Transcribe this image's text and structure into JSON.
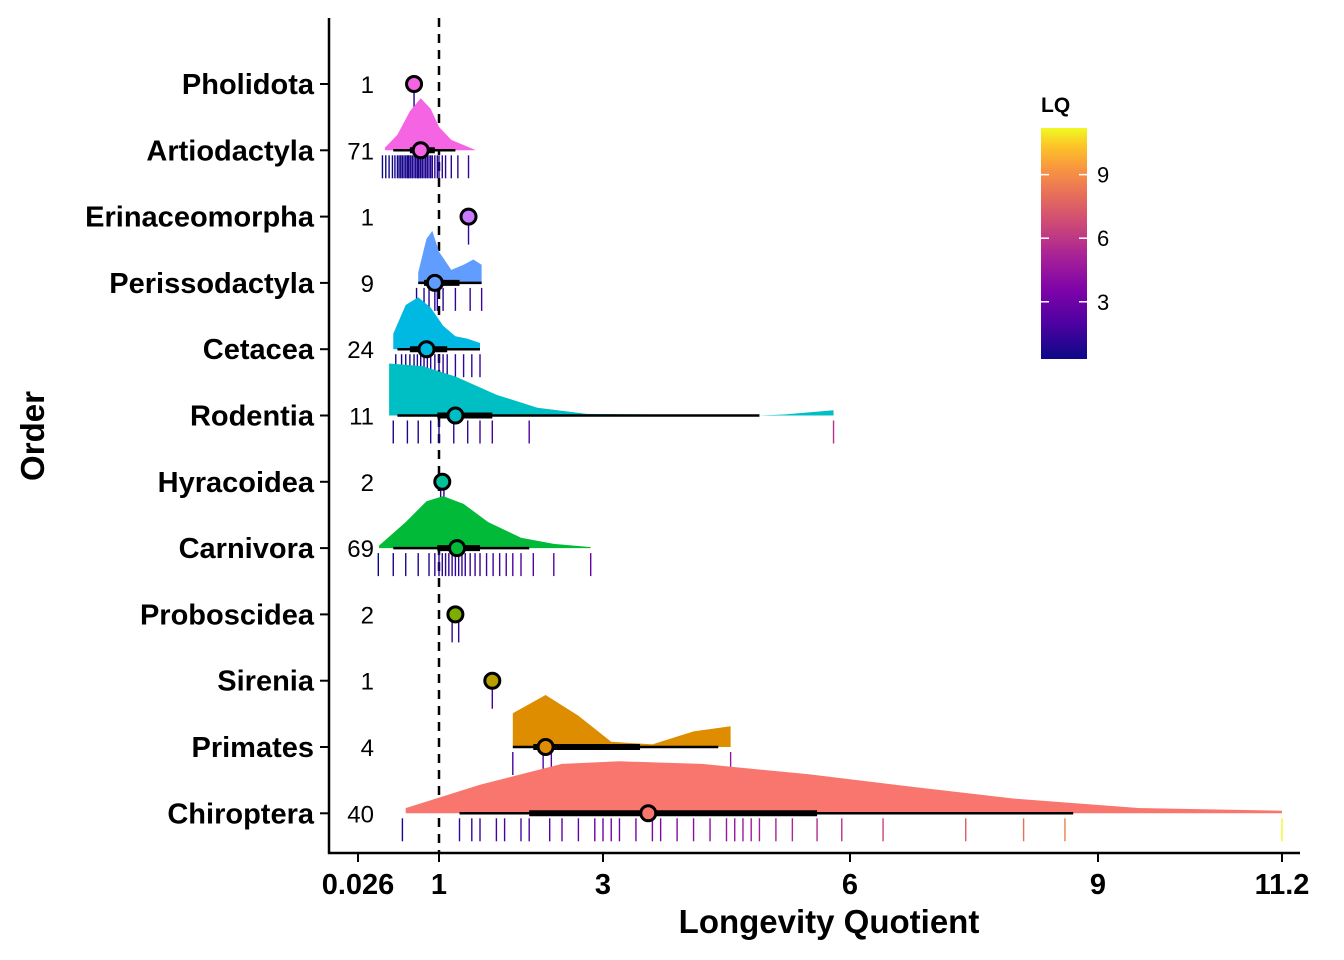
{
  "chart_data": {
    "type": "raincloud",
    "xlabel": "Longevity Quotient",
    "ylabel": "Order",
    "x_ticks": [
      0.026,
      1,
      3,
      6,
      9,
      11.2
    ],
    "x_tick_labels": [
      "0.026",
      "1",
      "3",
      "6",
      "9",
      "11.2"
    ],
    "xlim": [
      -0.4,
      11.2
    ],
    "reference_line": 1,
    "legend": {
      "title": "LQ",
      "ticks": [
        3,
        6,
        9
      ],
      "tick_labels": [
        "3",
        "6",
        "9"
      ],
      "range": [
        0.3,
        11.2
      ],
      "placement": "top-right"
    },
    "categories": [
      "Pholidota",
      "Artiodactyla",
      "Erinaceomorpha",
      "Perissodactyla",
      "Cetacea",
      "Rodentia",
      "Hyracoidea",
      "Carnivora",
      "Proboscidea",
      "Sirenia",
      "Primates",
      "Chiroptera"
    ],
    "series": [
      {
        "order": "Pholidota",
        "n": 1,
        "n_label": "1",
        "mean": 0.7,
        "q_low": null,
        "q_high": null,
        "whisker": null,
        "points": [
          0.7
        ],
        "density": [],
        "color": "#F564E3"
      },
      {
        "order": "Artiodactyla",
        "n": 71,
        "n_label": "71",
        "mean": 0.78,
        "q_low": 0.65,
        "q_high": 0.95,
        "whisker": [
          0.45,
          1.2
        ],
        "points": [
          0.32,
          0.36,
          0.4,
          0.44,
          0.47,
          0.5,
          0.52,
          0.54,
          0.56,
          0.58,
          0.6,
          0.62,
          0.63,
          0.64,
          0.66,
          0.68,
          0.7,
          0.72,
          0.74,
          0.75,
          0.76,
          0.78,
          0.8,
          0.82,
          0.84,
          0.86,
          0.88,
          0.9,
          0.92,
          0.95,
          0.98,
          1.0,
          1.04,
          1.08,
          1.15,
          1.23,
          1.36
        ],
        "density": [
          [
            0.35,
            0.05
          ],
          [
            0.5,
            0.3
          ],
          [
            0.65,
            0.75
          ],
          [
            0.78,
            1.0
          ],
          [
            0.9,
            0.8
          ],
          [
            1.0,
            0.45
          ],
          [
            1.15,
            0.2
          ],
          [
            1.35,
            0.07
          ],
          [
            1.45,
            0
          ]
        ],
        "color": "#F564E3"
      },
      {
        "order": "Erinaceomorpha",
        "n": 1,
        "n_label": "1",
        "mean": 1.36,
        "q_low": null,
        "q_high": null,
        "whisker": null,
        "points": [
          1.36
        ],
        "density": [],
        "color": "#C77CFF"
      },
      {
        "order": "Perissodactyla",
        "n": 9,
        "n_label": "9",
        "mean": 0.95,
        "q_low": 0.82,
        "q_high": 1.25,
        "whisker": [
          0.75,
          1.52
        ],
        "points": [
          0.73,
          0.82,
          0.88,
          0.95,
          0.98,
          1.05,
          1.2,
          1.38,
          1.52
        ],
        "density": [
          [
            0.75,
            0.2
          ],
          [
            0.85,
            0.85
          ],
          [
            0.92,
            1.0
          ],
          [
            1.0,
            0.6
          ],
          [
            1.15,
            0.25
          ],
          [
            1.3,
            0.35
          ],
          [
            1.42,
            0.45
          ],
          [
            1.52,
            0.35
          ]
        ],
        "color": "#619CFF"
      },
      {
        "order": "Cetacea",
        "n": 24,
        "n_label": "24",
        "mean": 0.85,
        "q_low": 0.65,
        "q_high": 1.1,
        "whisker": [
          0.5,
          1.5
        ],
        "points": [
          0.48,
          0.55,
          0.6,
          0.65,
          0.7,
          0.74,
          0.78,
          0.82,
          0.86,
          0.9,
          0.95,
          1.0,
          1.05,
          1.1,
          1.2,
          1.3,
          1.4,
          1.5
        ],
        "density": [
          [
            0.45,
            0.3
          ],
          [
            0.6,
            0.85
          ],
          [
            0.75,
            1.0
          ],
          [
            0.9,
            0.8
          ],
          [
            1.05,
            0.45
          ],
          [
            1.2,
            0.25
          ],
          [
            1.35,
            0.2
          ],
          [
            1.5,
            0.12
          ]
        ],
        "color": "#00B9E3"
      },
      {
        "order": "Rodentia",
        "n": 11,
        "n_label": "11",
        "mean": 1.2,
        "q_low": 0.98,
        "q_high": 1.65,
        "whisker": [
          0.5,
          4.9
        ],
        "points": [
          0.45,
          0.62,
          0.75,
          0.9,
          1.0,
          1.18,
          1.35,
          1.5,
          1.65,
          2.1,
          5.8
        ],
        "density": [
          [
            0.4,
            1.0
          ],
          [
            0.8,
            0.95
          ],
          [
            1.2,
            0.75
          ],
          [
            1.7,
            0.4
          ],
          [
            2.2,
            0.15
          ],
          [
            2.8,
            0.03
          ],
          [
            4.9,
            0.0
          ],
          [
            5.2,
            0.02
          ],
          [
            5.8,
            0.1
          ]
        ],
        "color": "#00BFC4"
      },
      {
        "order": "Hyracoidea",
        "n": 2,
        "n_label": "2",
        "mean": 1.04,
        "q_low": null,
        "q_high": null,
        "whisker": null,
        "points": [
          1.02,
          1.06
        ],
        "density": [],
        "color": "#00C19A"
      },
      {
        "order": "Carnivora",
        "n": 69,
        "n_label": "69",
        "mean": 1.22,
        "q_low": 0.98,
        "q_high": 1.5,
        "whisker": [
          0.45,
          2.1
        ],
        "points": [
          0.27,
          0.45,
          0.6,
          0.75,
          0.88,
          0.95,
          1.0,
          1.04,
          1.08,
          1.12,
          1.16,
          1.2,
          1.24,
          1.28,
          1.32,
          1.38,
          1.44,
          1.5,
          1.58,
          1.66,
          1.74,
          1.82,
          1.9,
          2.0,
          2.15,
          2.4,
          2.85
        ],
        "density": [
          [
            0.28,
            0.05
          ],
          [
            0.6,
            0.5
          ],
          [
            0.85,
            0.9
          ],
          [
            1.05,
            1.0
          ],
          [
            1.3,
            0.85
          ],
          [
            1.6,
            0.5
          ],
          [
            2.0,
            0.2
          ],
          [
            2.4,
            0.08
          ],
          [
            2.85,
            0.02
          ]
        ],
        "color": "#00BA38"
      },
      {
        "order": "Proboscidea",
        "n": 2,
        "n_label": "2",
        "mean": 1.2,
        "q_low": null,
        "q_high": null,
        "whisker": null,
        "points": [
          1.16,
          1.24
        ],
        "density": [],
        "color": "#7CAE00"
      },
      {
        "order": "Sirenia",
        "n": 1,
        "n_label": "1",
        "mean": 1.65,
        "q_low": null,
        "q_high": null,
        "whisker": null,
        "points": [
          1.65
        ],
        "density": [],
        "color": "#B79F00"
      },
      {
        "order": "Primates",
        "n": 4,
        "n_label": "4",
        "mean": 2.3,
        "q_low": 2.15,
        "q_high": 3.45,
        "whisker": [
          1.9,
          4.4
        ],
        "points": [
          1.9,
          2.27,
          2.37,
          4.55
        ],
        "density": [
          [
            1.9,
            0.65
          ],
          [
            2.3,
            1.0
          ],
          [
            2.7,
            0.6
          ],
          [
            3.1,
            0.1
          ],
          [
            3.6,
            0.05
          ],
          [
            4.1,
            0.3
          ],
          [
            4.55,
            0.4
          ]
        ],
        "color": "#DE8C00"
      },
      {
        "order": "Chiroptera",
        "n": 40,
        "n_label": "40",
        "mean": 3.55,
        "q_low": 2.1,
        "q_high": 5.6,
        "whisker": [
          1.25,
          8.7
        ],
        "points": [
          0.56,
          1.25,
          1.4,
          1.5,
          1.7,
          1.8,
          2.0,
          2.1,
          2.35,
          2.5,
          2.7,
          2.9,
          3.0,
          3.1,
          3.2,
          3.4,
          3.6,
          3.7,
          3.9,
          4.1,
          4.3,
          4.5,
          4.6,
          4.7,
          4.8,
          4.9,
          5.1,
          5.3,
          5.6,
          5.9,
          6.4,
          7.4,
          8.1,
          8.6,
          11.2
        ],
        "density": [
          [
            0.6,
            0.1
          ],
          [
            1.5,
            0.55
          ],
          [
            2.5,
            0.95
          ],
          [
            3.2,
            1.0
          ],
          [
            4.2,
            0.95
          ],
          [
            5.5,
            0.75
          ],
          [
            6.8,
            0.5
          ],
          [
            8.0,
            0.28
          ],
          [
            9.5,
            0.1
          ],
          [
            11.2,
            0.05
          ]
        ],
        "color": "#F8766D"
      }
    ]
  }
}
